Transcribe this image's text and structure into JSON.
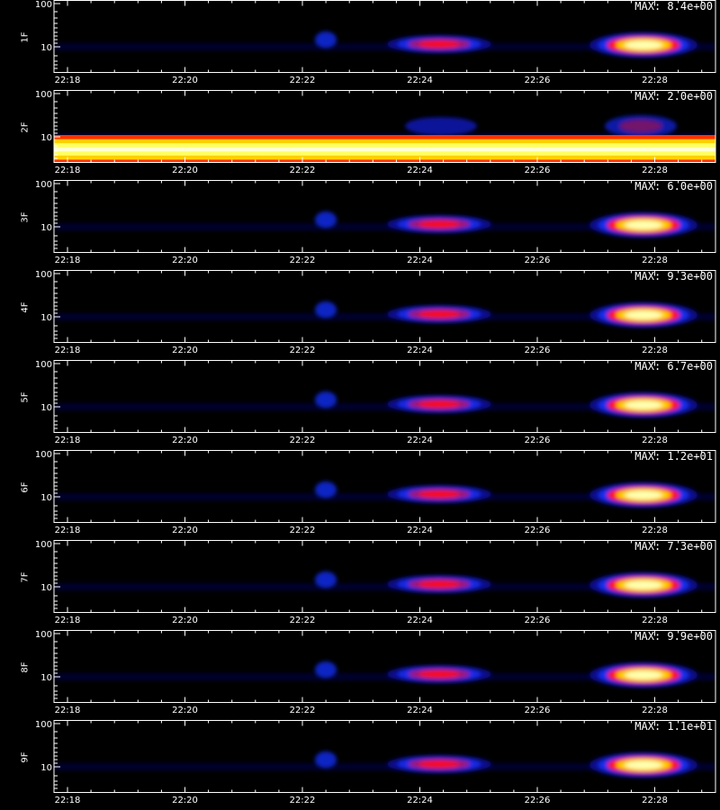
{
  "chart_data": {
    "type": "heatmap",
    "x_ticks": [
      "22:18",
      "22:20",
      "22:22",
      "22:24",
      "22:26",
      "22:28"
    ],
    "y_ticks": [
      "100",
      "10"
    ],
    "y_scale": "log",
    "colormap": [
      "#000000",
      "#0000ff",
      "#ff0000",
      "#ffff00",
      "#ffffff"
    ],
    "panels": [
      {
        "label": "1F",
        "max_label": "MAX: 8.4e+00",
        "background_band": false
      },
      {
        "label": "2F",
        "max_label": "MAX: 2.0e+00",
        "background_band": true
      },
      {
        "label": "3F",
        "max_label": "MAX: 6.0e+00",
        "background_band": false
      },
      {
        "label": "4F",
        "max_label": "MAX: 9.3e+00",
        "background_band": false
      },
      {
        "label": "5F",
        "max_label": "MAX: 6.7e+00",
        "background_band": false
      },
      {
        "label": "6F",
        "max_label": "MAX: 1.2e+01",
        "background_band": false
      },
      {
        "label": "7F",
        "max_label": "MAX: 7.3e+00",
        "background_band": false
      },
      {
        "label": "8F",
        "max_label": "MAX: 9.9e+00",
        "background_band": false
      },
      {
        "label": "9F",
        "max_label": "MAX: 1.1e+01",
        "background_band": false
      }
    ]
  }
}
